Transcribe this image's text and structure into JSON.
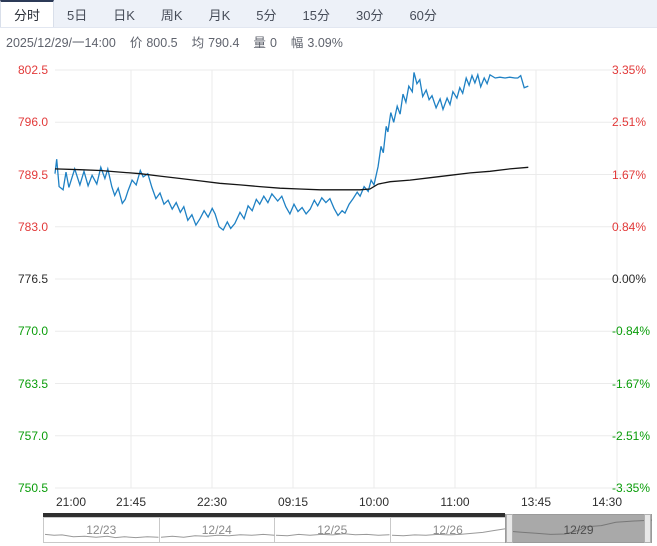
{
  "tabbar": {
    "tabs": [
      {
        "label": "分时",
        "active": true
      },
      {
        "label": "5日",
        "active": false
      },
      {
        "label": "日K",
        "active": false
      },
      {
        "label": "周K",
        "active": false
      },
      {
        "label": "月K",
        "active": false
      },
      {
        "label": "5分",
        "active": false
      },
      {
        "label": "15分",
        "active": false
      },
      {
        "label": "30分",
        "active": false
      },
      {
        "label": "60分",
        "active": false
      }
    ]
  },
  "infobar": {
    "datetime": "2025/12/29/一14:00",
    "fields": [
      {
        "label": "价",
        "value": "800.5"
      },
      {
        "label": "均",
        "value": "790.4"
      },
      {
        "label": "量",
        "value": "0"
      },
      {
        "label": "幅",
        "value": "3.09%"
      }
    ]
  },
  "colors": {
    "up": "#e23a3a",
    "down": "#0a9d0a",
    "neutral": "#2b2b2b",
    "price_line": "#1f81c4",
    "avg_line": "#151515",
    "grid": "#ebebeb",
    "nav_spark": "#999999",
    "nav_selected_bg": "#a9a9a9"
  },
  "chart_data": {
    "type": "line",
    "title": "Intraday minute chart (分时)",
    "x_ticks": [
      "21:00",
      "21:45",
      "22:30",
      "09:15",
      "10:00",
      "11:00",
      "13:45",
      "14:30"
    ],
    "y_left_ticks": [
      {
        "label": "802.5",
        "tone": "up"
      },
      {
        "label": "796.0",
        "tone": "up"
      },
      {
        "label": "789.5",
        "tone": "up"
      },
      {
        "label": "783.0",
        "tone": "up"
      },
      {
        "label": "776.5",
        "tone": "zero"
      },
      {
        "label": "770.0",
        "tone": "down"
      },
      {
        "label": "763.5",
        "tone": "down"
      },
      {
        "label": "757.0",
        "tone": "down"
      },
      {
        "label": "750.5",
        "tone": "down"
      }
    ],
    "y_right_ticks": [
      {
        "label": "3.35%",
        "tone": "up"
      },
      {
        "label": "2.51%",
        "tone": "up"
      },
      {
        "label": "1.67%",
        "tone": "up"
      },
      {
        "label": "0.84%",
        "tone": "up"
      },
      {
        "label": "0.00%",
        "tone": "zero"
      },
      {
        "label": "-0.84%",
        "tone": "down"
      },
      {
        "label": "-1.67%",
        "tone": "down"
      },
      {
        "label": "-2.51%",
        "tone": "down"
      },
      {
        "label": "-3.35%",
        "tone": "down"
      }
    ],
    "ylim": [
      750.5,
      802.5
    ],
    "prev_close": 776.5,
    "grid": true,
    "series": [
      {
        "name": "price",
        "points": [
          [
            0.0,
            789.6
          ],
          [
            0.003,
            791.4
          ],
          [
            0.007,
            788.0
          ],
          [
            0.014,
            787.6
          ],
          [
            0.019,
            789.8
          ],
          [
            0.024,
            787.9
          ],
          [
            0.034,
            790.2
          ],
          [
            0.043,
            788.2
          ],
          [
            0.05,
            789.9
          ],
          [
            0.057,
            788.1
          ],
          [
            0.064,
            789.4
          ],
          [
            0.072,
            788.3
          ],
          [
            0.079,
            790.4
          ],
          [
            0.086,
            789.0
          ],
          [
            0.091,
            790.2
          ],
          [
            0.098,
            788.0
          ],
          [
            0.103,
            786.9
          ],
          [
            0.109,
            787.8
          ],
          [
            0.116,
            785.9
          ],
          [
            0.121,
            786.4
          ],
          [
            0.126,
            787.5
          ],
          [
            0.133,
            788.8
          ],
          [
            0.14,
            788.2
          ],
          [
            0.147,
            790.0
          ],
          [
            0.152,
            789.2
          ],
          [
            0.16,
            789.6
          ],
          [
            0.167,
            787.9
          ],
          [
            0.174,
            786.5
          ],
          [
            0.181,
            787.2
          ],
          [
            0.188,
            785.8
          ],
          [
            0.195,
            786.3
          ],
          [
            0.202,
            785.2
          ],
          [
            0.209,
            786.0
          ],
          [
            0.216,
            784.8
          ],
          [
            0.222,
            785.5
          ],
          [
            0.229,
            783.8
          ],
          [
            0.236,
            784.5
          ],
          [
            0.243,
            783.2
          ],
          [
            0.25,
            784.0
          ],
          [
            0.257,
            785.0
          ],
          [
            0.264,
            784.2
          ],
          [
            0.271,
            785.3
          ],
          [
            0.276,
            784.6
          ],
          [
            0.283,
            783.0
          ],
          [
            0.29,
            782.6
          ],
          [
            0.297,
            783.6
          ],
          [
            0.303,
            782.8
          ],
          [
            0.31,
            783.4
          ],
          [
            0.319,
            784.8
          ],
          [
            0.326,
            784.0
          ],
          [
            0.333,
            785.6
          ],
          [
            0.34,
            785.0
          ],
          [
            0.347,
            786.4
          ],
          [
            0.353,
            785.8
          ],
          [
            0.36,
            786.8
          ],
          [
            0.367,
            786.0
          ],
          [
            0.374,
            787.1
          ],
          [
            0.384,
            786.2
          ],
          [
            0.391,
            786.8
          ],
          [
            0.398,
            785.5
          ],
          [
            0.405,
            784.6
          ],
          [
            0.412,
            785.8
          ],
          [
            0.419,
            784.9
          ],
          [
            0.426,
            785.4
          ],
          [
            0.433,
            784.6
          ],
          [
            0.44,
            785.2
          ],
          [
            0.447,
            786.3
          ],
          [
            0.453,
            785.6
          ],
          [
            0.46,
            786.6
          ],
          [
            0.467,
            786.0
          ],
          [
            0.474,
            786.5
          ],
          [
            0.481,
            785.3
          ],
          [
            0.488,
            784.4
          ],
          [
            0.495,
            785.0
          ],
          [
            0.5,
            784.7
          ],
          [
            0.507,
            785.8
          ],
          [
            0.514,
            786.5
          ],
          [
            0.521,
            787.3
          ],
          [
            0.526,
            786.8
          ],
          [
            0.533,
            788.0
          ],
          [
            0.54,
            787.4
          ],
          [
            0.545,
            788.8
          ],
          [
            0.55,
            788.2
          ],
          [
            0.557,
            790.5
          ],
          [
            0.562,
            793.0
          ],
          [
            0.566,
            792.2
          ],
          [
            0.571,
            795.5
          ],
          [
            0.574,
            794.8
          ],
          [
            0.579,
            797.2
          ],
          [
            0.584,
            796.0
          ],
          [
            0.59,
            798.0
          ],
          [
            0.595,
            797.0
          ],
          [
            0.6,
            799.5
          ],
          [
            0.605,
            798.5
          ],
          [
            0.61,
            800.5
          ],
          [
            0.616,
            799.8
          ],
          [
            0.619,
            802.2
          ],
          [
            0.624,
            800.8
          ],
          [
            0.629,
            801.3
          ],
          [
            0.634,
            799.2
          ],
          [
            0.64,
            800.0
          ],
          [
            0.645,
            798.8
          ],
          [
            0.65,
            799.3
          ],
          [
            0.657,
            797.8
          ],
          [
            0.664,
            798.9
          ],
          [
            0.669,
            797.6
          ],
          [
            0.676,
            799.0
          ],
          [
            0.681,
            798.2
          ],
          [
            0.686,
            799.8
          ],
          [
            0.693,
            799.0
          ],
          [
            0.698,
            800.3
          ],
          [
            0.703,
            799.6
          ],
          [
            0.709,
            801.5
          ],
          [
            0.714,
            800.6
          ],
          [
            0.719,
            801.8
          ],
          [
            0.724,
            800.9
          ],
          [
            0.729,
            801.9
          ],
          [
            0.734,
            800.4
          ],
          [
            0.74,
            801.5
          ],
          [
            0.745,
            800.8
          ],
          [
            0.75,
            801.9
          ],
          [
            0.759,
            801.5
          ],
          [
            0.767,
            801.6
          ],
          [
            0.776,
            801.5
          ],
          [
            0.784,
            801.6
          ],
          [
            0.793,
            801.5
          ],
          [
            0.798,
            801.5
          ],
          [
            0.803,
            801.8
          ],
          [
            0.809,
            800.3
          ],
          [
            0.816,
            800.5
          ]
        ]
      },
      {
        "name": "average",
        "points": [
          [
            0.0,
            790.2
          ],
          [
            0.043,
            790.1
          ],
          [
            0.078,
            790.0
          ],
          [
            0.112,
            789.8
          ],
          [
            0.147,
            789.6
          ],
          [
            0.181,
            789.3
          ],
          [
            0.216,
            789.0
          ],
          [
            0.25,
            788.7
          ],
          [
            0.284,
            788.4
          ],
          [
            0.319,
            788.2
          ],
          [
            0.353,
            788.0
          ],
          [
            0.388,
            787.8
          ],
          [
            0.422,
            787.7
          ],
          [
            0.457,
            787.6
          ],
          [
            0.491,
            787.6
          ],
          [
            0.526,
            787.6
          ],
          [
            0.543,
            787.7
          ],
          [
            0.557,
            788.3
          ],
          [
            0.578,
            788.6
          ],
          [
            0.612,
            788.8
          ],
          [
            0.647,
            789.1
          ],
          [
            0.681,
            789.4
          ],
          [
            0.716,
            789.7
          ],
          [
            0.75,
            789.9
          ],
          [
            0.784,
            790.2
          ],
          [
            0.816,
            790.4
          ]
        ]
      }
    ]
  },
  "navigator": {
    "days": [
      {
        "label": "12/23",
        "selected": false,
        "spark": [
          [
            0,
            0.35
          ],
          [
            0.08,
            0.3
          ],
          [
            0.15,
            0.32
          ],
          [
            0.25,
            0.22
          ],
          [
            0.35,
            0.25
          ],
          [
            0.45,
            0.2
          ],
          [
            0.55,
            0.25
          ],
          [
            0.62,
            0.18
          ],
          [
            0.7,
            0.22
          ],
          [
            0.8,
            0.18
          ],
          [
            0.9,
            0.22
          ],
          [
            1,
            0.2
          ]
        ]
      },
      {
        "label": "12/24",
        "selected": false,
        "spark": [
          [
            0,
            0.2
          ],
          [
            0.1,
            0.25
          ],
          [
            0.2,
            0.2
          ],
          [
            0.3,
            0.28
          ],
          [
            0.4,
            0.25
          ],
          [
            0.5,
            0.3
          ],
          [
            0.6,
            0.28
          ],
          [
            0.7,
            0.33
          ],
          [
            0.8,
            0.3
          ],
          [
            0.9,
            0.35
          ],
          [
            1,
            0.3
          ]
        ]
      },
      {
        "label": "12/25",
        "selected": false,
        "spark": [
          [
            0,
            0.3
          ],
          [
            0.1,
            0.28
          ],
          [
            0.2,
            0.35
          ],
          [
            0.3,
            0.3
          ],
          [
            0.4,
            0.35
          ],
          [
            0.5,
            0.32
          ],
          [
            0.6,
            0.38
          ],
          [
            0.7,
            0.33
          ],
          [
            0.8,
            0.35
          ],
          [
            0.9,
            0.3
          ],
          [
            1,
            0.33
          ]
        ]
      },
      {
        "label": "12/26",
        "selected": false,
        "spark": [
          [
            0,
            0.3
          ],
          [
            0.1,
            0.28
          ],
          [
            0.2,
            0.32
          ],
          [
            0.3,
            0.3
          ],
          [
            0.4,
            0.35
          ],
          [
            0.5,
            0.32
          ],
          [
            0.6,
            0.35
          ],
          [
            0.7,
            0.4
          ],
          [
            0.8,
            0.45
          ],
          [
            0.9,
            0.55
          ],
          [
            1,
            0.65
          ]
        ]
      },
      {
        "label": "12/29",
        "selected": true,
        "spark": [
          [
            0,
            0.45
          ],
          [
            0.1,
            0.4
          ],
          [
            0.2,
            0.35
          ],
          [
            0.3,
            0.3
          ],
          [
            0.4,
            0.32
          ],
          [
            0.5,
            0.5
          ],
          [
            0.55,
            0.65
          ],
          [
            0.65,
            0.7
          ],
          [
            0.75,
            0.85
          ],
          [
            0.85,
            0.9
          ],
          [
            1,
            0.95
          ]
        ]
      }
    ]
  }
}
